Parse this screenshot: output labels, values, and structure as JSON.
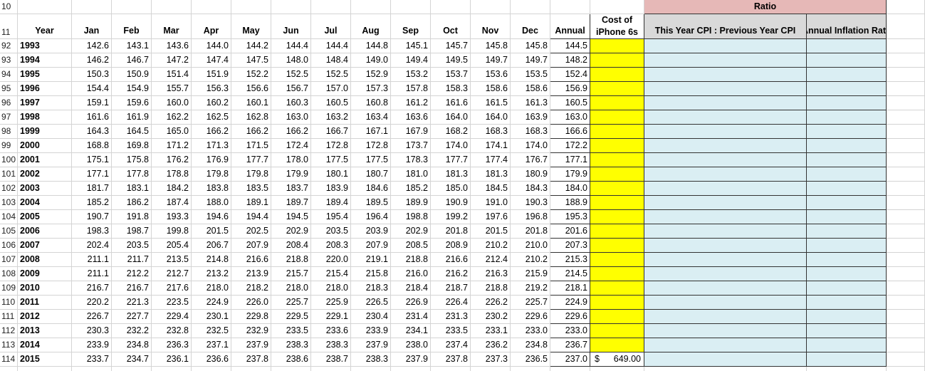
{
  "header_row_numbers": [
    "10",
    "11"
  ],
  "ratio_group": "Ratio",
  "columns": [
    "Year",
    "Jan",
    "Feb",
    "Mar",
    "Apr",
    "May",
    "Jun",
    "Jul",
    "Aug",
    "Sep",
    "Oct",
    "Nov",
    "Dec",
    "Annual"
  ],
  "cost_header": [
    "Cost of",
    "iPhone 6s"
  ],
  "ratio_columns": [
    "This Year CPI : Previous Year CPI",
    "Annual Inflation Rate"
  ],
  "cost_2015": {
    "currency": "$",
    "amount": "649.00"
  },
  "rows": [
    [
      "92",
      "1993",
      "142.6",
      "143.1",
      "143.6",
      "144.0",
      "144.2",
      "144.4",
      "144.4",
      "144.8",
      "145.1",
      "145.7",
      "145.8",
      "145.8",
      "144.5"
    ],
    [
      "93",
      "1994",
      "146.2",
      "146.7",
      "147.2",
      "147.4",
      "147.5",
      "148.0",
      "148.4",
      "149.0",
      "149.4",
      "149.5",
      "149.7",
      "149.7",
      "148.2"
    ],
    [
      "94",
      "1995",
      "150.3",
      "150.9",
      "151.4",
      "151.9",
      "152.2",
      "152.5",
      "152.5",
      "152.9",
      "153.2",
      "153.7",
      "153.6",
      "153.5",
      "152.4"
    ],
    [
      "95",
      "1996",
      "154.4",
      "154.9",
      "155.7",
      "156.3",
      "156.6",
      "156.7",
      "157.0",
      "157.3",
      "157.8",
      "158.3",
      "158.6",
      "158.6",
      "156.9"
    ],
    [
      "96",
      "1997",
      "159.1",
      "159.6",
      "160.0",
      "160.2",
      "160.1",
      "160.3",
      "160.5",
      "160.8",
      "161.2",
      "161.6",
      "161.5",
      "161.3",
      "160.5"
    ],
    [
      "97",
      "1998",
      "161.6",
      "161.9",
      "162.2",
      "162.5",
      "162.8",
      "163.0",
      "163.2",
      "163.4",
      "163.6",
      "164.0",
      "164.0",
      "163.9",
      "163.0"
    ],
    [
      "98",
      "1999",
      "164.3",
      "164.5",
      "165.0",
      "166.2",
      "166.2",
      "166.2",
      "166.7",
      "167.1",
      "167.9",
      "168.2",
      "168.3",
      "168.3",
      "166.6"
    ],
    [
      "99",
      "2000",
      "168.8",
      "169.8",
      "171.2",
      "171.3",
      "171.5",
      "172.4",
      "172.8",
      "172.8",
      "173.7",
      "174.0",
      "174.1",
      "174.0",
      "172.2"
    ],
    [
      "100",
      "2001",
      "175.1",
      "175.8",
      "176.2",
      "176.9",
      "177.7",
      "178.0",
      "177.5",
      "177.5",
      "178.3",
      "177.7",
      "177.4",
      "176.7",
      "177.1"
    ],
    [
      "101",
      "2002",
      "177.1",
      "177.8",
      "178.8",
      "179.8",
      "179.8",
      "179.9",
      "180.1",
      "180.7",
      "181.0",
      "181.3",
      "181.3",
      "180.9",
      "179.9"
    ],
    [
      "102",
      "2003",
      "181.7",
      "183.1",
      "184.2",
      "183.8",
      "183.5",
      "183.7",
      "183.9",
      "184.6",
      "185.2",
      "185.0",
      "184.5",
      "184.3",
      "184.0"
    ],
    [
      "103",
      "2004",
      "185.2",
      "186.2",
      "187.4",
      "188.0",
      "189.1",
      "189.7",
      "189.4",
      "189.5",
      "189.9",
      "190.9",
      "191.0",
      "190.3",
      "188.9"
    ],
    [
      "104",
      "2005",
      "190.7",
      "191.8",
      "193.3",
      "194.6",
      "194.4",
      "194.5",
      "195.4",
      "196.4",
      "198.8",
      "199.2",
      "197.6",
      "196.8",
      "195.3"
    ],
    [
      "105",
      "2006",
      "198.3",
      "198.7",
      "199.8",
      "201.5",
      "202.5",
      "202.9",
      "203.5",
      "203.9",
      "202.9",
      "201.8",
      "201.5",
      "201.8",
      "201.6"
    ],
    [
      "106",
      "2007",
      "202.4",
      "203.5",
      "205.4",
      "206.7",
      "207.9",
      "208.4",
      "208.3",
      "207.9",
      "208.5",
      "208.9",
      "210.2",
      "210.0",
      "207.3"
    ],
    [
      "107",
      "2008",
      "211.1",
      "211.7",
      "213.5",
      "214.8",
      "216.6",
      "218.8",
      "220.0",
      "219.1",
      "218.8",
      "216.6",
      "212.4",
      "210.2",
      "215.3"
    ],
    [
      "108",
      "2009",
      "211.1",
      "212.2",
      "212.7",
      "213.2",
      "213.9",
      "215.7",
      "215.4",
      "215.8",
      "216.0",
      "216.2",
      "216.3",
      "215.9",
      "214.5"
    ],
    [
      "109",
      "2010",
      "216.7",
      "216.7",
      "217.6",
      "218.0",
      "218.2",
      "218.0",
      "218.0",
      "218.3",
      "218.4",
      "218.7",
      "218.8",
      "219.2",
      "218.1"
    ],
    [
      "110",
      "2011",
      "220.2",
      "221.3",
      "223.5",
      "224.9",
      "226.0",
      "225.7",
      "225.9",
      "226.5",
      "226.9",
      "226.4",
      "226.2",
      "225.7",
      "224.9"
    ],
    [
      "111",
      "2012",
      "226.7",
      "227.7",
      "229.4",
      "230.1",
      "229.8",
      "229.5",
      "229.1",
      "230.4",
      "231.4",
      "231.3",
      "230.2",
      "229.6",
      "229.6"
    ],
    [
      "112",
      "2013",
      "230.3",
      "232.2",
      "232.8",
      "232.5",
      "232.9",
      "233.5",
      "233.6",
      "233.9",
      "234.1",
      "233.5",
      "233.1",
      "233.0",
      "233.0"
    ],
    [
      "113",
      "2014",
      "233.9",
      "234.8",
      "236.3",
      "237.1",
      "237.9",
      "238.3",
      "238.3",
      "237.9",
      "238.0",
      "237.4",
      "236.2",
      "234.8",
      "236.7"
    ],
    [
      "114",
      "2015",
      "233.7",
      "234.7",
      "236.1",
      "236.6",
      "237.8",
      "238.6",
      "238.7",
      "238.3",
      "237.9",
      "237.8",
      "237.3",
      "236.5",
      "237.0"
    ]
  ]
}
